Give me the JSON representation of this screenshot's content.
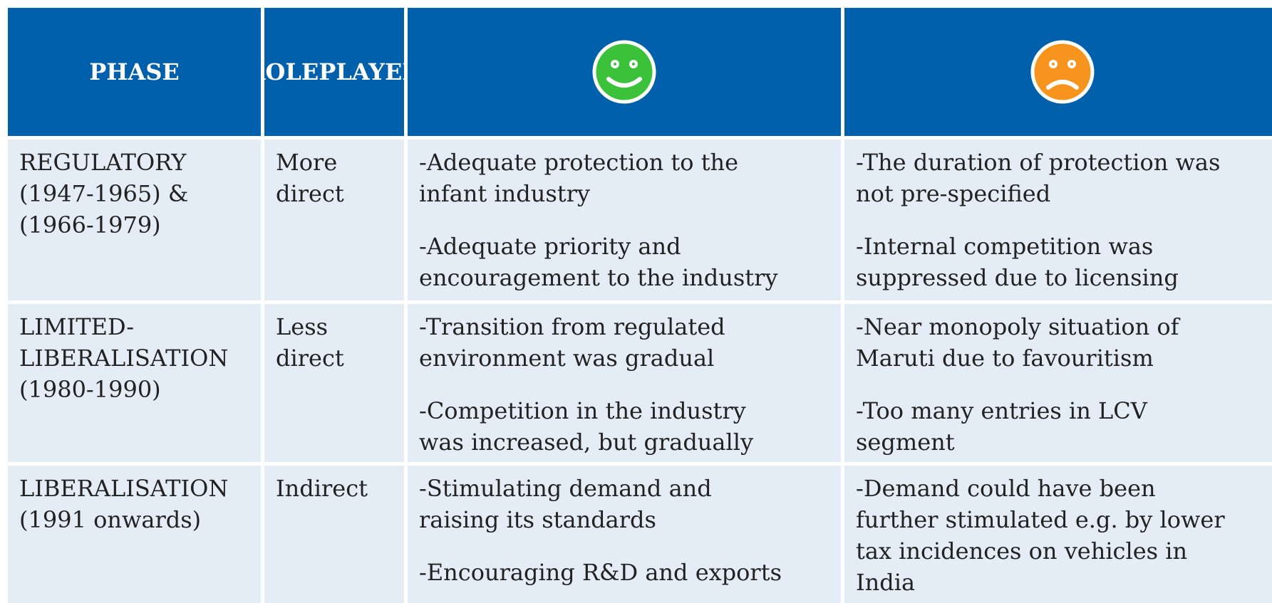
{
  "header": {
    "phase": "PHASE",
    "role": [
      "ROLE",
      "PLAYED"
    ]
  },
  "rows": [
    {
      "phase": [
        "REGULATORY",
        "(1947-1965) &",
        "(1966-1979)"
      ],
      "role": [
        "More",
        "direct"
      ],
      "pros": [
        [
          "-Adequate protection to the",
          "infant industry"
        ],
        [
          "-Adequate priority and",
          "encouragement to the industry"
        ]
      ],
      "cons": [
        [
          "-The duration of protection was",
          "not pre-specified"
        ],
        [
          "-Internal competition was",
          "suppressed due to licensing"
        ]
      ]
    },
    {
      "phase": [
        "LIMITED-",
        "LIBERALISATION",
        "(1980-1990)"
      ],
      "role": [
        "Less",
        "direct"
      ],
      "pros": [
        [
          "-Transition from regulated",
          "environment was gradual"
        ],
        [
          "-Competition in the industry",
          "was increased, but gradually"
        ]
      ],
      "cons": [
        [
          "-Near monopoly situation of",
          "Maruti due to favouritism"
        ],
        [
          "-Too many entries in LCV",
          "segment"
        ]
      ]
    },
    {
      "phase": [
        "LIBERALISATION",
        "(1991 onwards)"
      ],
      "role": [
        "Indirect"
      ],
      "pros": [
        [
          "-Stimulating demand and",
          "raising its standards"
        ],
        [
          "-Encouraging R&D and exports"
        ]
      ],
      "cons": [
        [
          "-Demand could have been",
          "further stimulated e.g. by lower",
          "tax incidences on vehicles in",
          "India"
        ]
      ]
    }
  ]
}
